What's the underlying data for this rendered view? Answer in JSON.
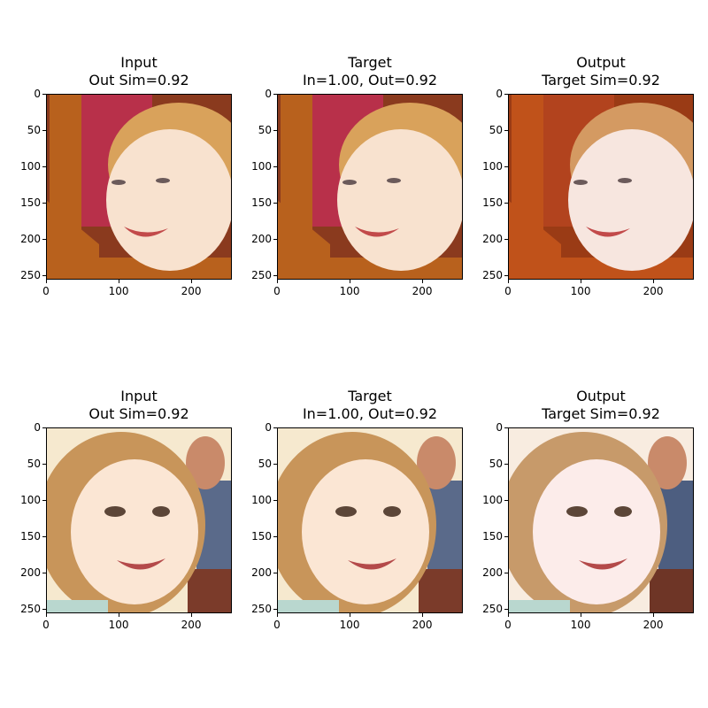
{
  "figure": {
    "rows": [
      {
        "panels": [
          {
            "title1": "Input",
            "title2": "Out Sim=0.92",
            "palette": {
              "bg": "#8a3a1e",
              "wood": "#b8611d",
              "panel": "#b8304a",
              "skin": "#f8e2cf",
              "hair": "#d9a25b"
            }
          },
          {
            "title1": "Target",
            "title2": "In=1.00, Out=0.92",
            "palette": {
              "bg": "#8a3a1e",
              "wood": "#b8611d",
              "panel": "#b8304a",
              "skin": "#f8e2cf",
              "hair": "#d9a25b"
            }
          },
          {
            "title1": "Output",
            "title2": "Target Sim=0.92",
            "palette": {
              "bg": "#9a3b15",
              "wood": "#c0521a",
              "panel": "#b2431e",
              "skin": "#f7e6df",
              "hair": "#d49a62"
            }
          }
        ]
      },
      {
        "panels": [
          {
            "title1": "Input",
            "title2": "Out Sim=0.92",
            "palette": {
              "bg": "#f6e9cf",
              "wood": "#7b3b2a",
              "panel": "#5a6a8a",
              "skin": "#fbe6d4",
              "hair": "#c8955a"
            }
          },
          {
            "title1": "Target",
            "title2": "In=1.00, Out=0.92",
            "palette": {
              "bg": "#f6e9cf",
              "wood": "#7b3b2a",
              "panel": "#5a6a8a",
              "skin": "#fbe6d4",
              "hair": "#c8955a"
            }
          },
          {
            "title1": "Output",
            "title2": "Target Sim=0.92",
            "palette": {
              "bg": "#f8ece0",
              "wood": "#6e3526",
              "panel": "#4d5e80",
              "skin": "#fcecea",
              "hair": "#c79a6a"
            }
          }
        ]
      }
    ],
    "axes": {
      "y_ticks": [
        "0",
        "50",
        "100",
        "150",
        "200",
        "250"
      ],
      "y_values": [
        0,
        50,
        100,
        150,
        200,
        250
      ],
      "x_ticks": [
        "0",
        "100",
        "200"
      ],
      "x_values": [
        0,
        100,
        200
      ],
      "extent": 256
    }
  }
}
